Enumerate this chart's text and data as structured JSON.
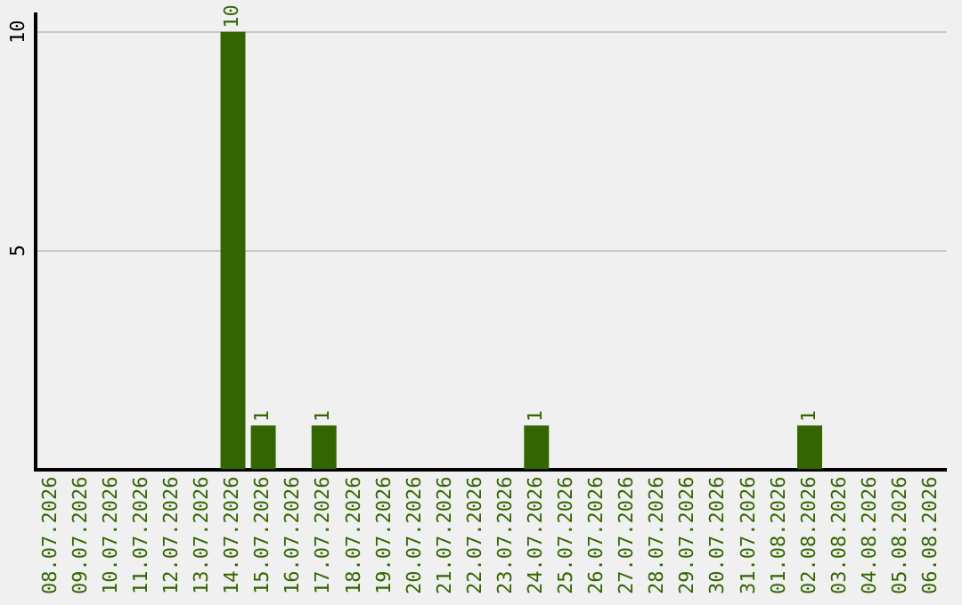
{
  "chart_data": {
    "type": "bar",
    "categories": [
      "08.07.2026",
      "09.07.2026",
      "10.07.2026",
      "11.07.2026",
      "12.07.2026",
      "13.07.2026",
      "14.07.2026",
      "15.07.2026",
      "16.07.2026",
      "17.07.2026",
      "18.07.2026",
      "19.07.2026",
      "20.07.2026",
      "21.07.2026",
      "22.07.2026",
      "23.07.2026",
      "24.07.2026",
      "25.07.2026",
      "26.07.2026",
      "27.07.2026",
      "28.07.2026",
      "29.07.2026",
      "30.07.2026",
      "31.07.2026",
      "01.08.2026",
      "02.08.2026",
      "03.08.2026",
      "04.08.2026",
      "05.08.2026",
      "06.08.2026"
    ],
    "values": [
      0,
      0,
      0,
      0,
      0,
      0,
      10,
      1,
      0,
      1,
      0,
      0,
      0,
      0,
      0,
      0,
      1,
      0,
      0,
      0,
      0,
      0,
      0,
      0,
      0,
      1,
      0,
      0,
      0,
      0
    ],
    "value_labels": [
      null,
      null,
      null,
      null,
      null,
      null,
      "10",
      "1",
      null,
      "1",
      null,
      null,
      null,
      null,
      null,
      null,
      "1",
      null,
      null,
      null,
      null,
      null,
      null,
      null,
      null,
      "1",
      null,
      null,
      null,
      null
    ],
    "color": "#336600",
    "ylim": [
      0,
      10.4
    ],
    "yticks": [
      5,
      10
    ],
    "grid": "y",
    "legend": false
  }
}
